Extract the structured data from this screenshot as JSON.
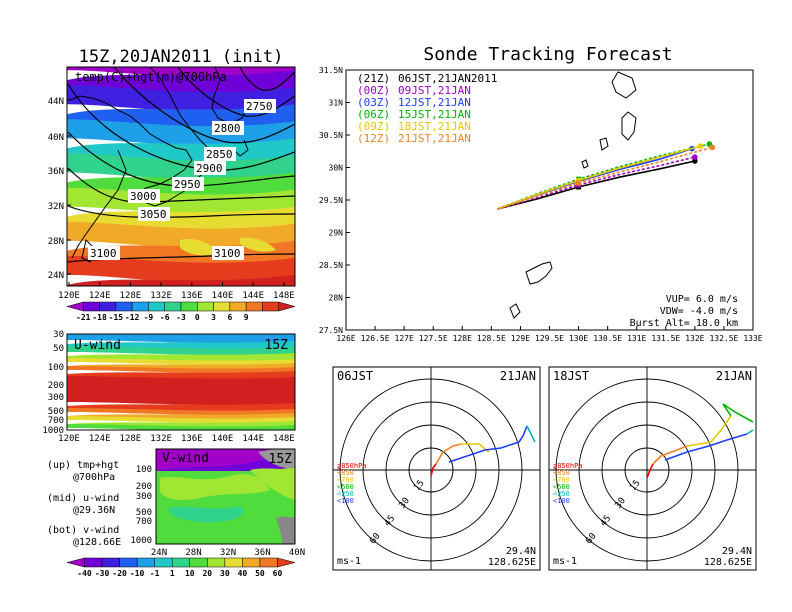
{
  "left": {
    "title": "15Z,20JAN2011 (init)",
    "map_label": "temp(C)+hgt(m)@700hPa",
    "lat_ticks": [
      "44N",
      "40N",
      "36N",
      "32N",
      "28N",
      "24N"
    ],
    "lon_ticks": [
      "120E",
      "124E",
      "128E",
      "132E",
      "136E",
      "140E",
      "144E",
      "148E"
    ],
    "height_labels": [
      "2750",
      "2800",
      "2850",
      "2900",
      "2950",
      "3000",
      "3050",
      "3100",
      "3100"
    ],
    "temp_colorbar": {
      "labels": [
        "-21",
        "-18",
        "-15",
        "-12",
        "-9",
        "-6",
        "-3",
        "0",
        "3",
        "6",
        "9"
      ],
      "colors": [
        "#a000c8",
        "#7000d8",
        "#4020e0",
        "#2060f0",
        "#1ea0e8",
        "#20c8c8",
        "#30d28c",
        "#50dc3c",
        "#a0e632",
        "#e6dc32",
        "#f0aa28",
        "#f07824",
        "#e63c1e",
        "#d22020"
      ]
    },
    "uwind": {
      "label": "U-wind",
      "time": "15Z",
      "p_ticks": [
        "30",
        "50",
        "100",
        "200",
        "300",
        "500",
        "700",
        "1000"
      ],
      "lon_ticks": [
        "120E",
        "124E",
        "128E",
        "132E",
        "136E",
        "140E",
        "144E",
        "148E"
      ]
    },
    "vwind": {
      "label": "V-wind",
      "time": "15Z",
      "p_ticks": [
        "100",
        "200",
        "300",
        "500",
        "700",
        "1000"
      ],
      "lat_ticks": [
        "24N",
        "28N",
        "32N",
        "36N",
        "40N"
      ]
    },
    "wind_colorbar": {
      "labels": [
        "-40",
        "-30",
        "-20",
        "-10",
        "-1",
        "1",
        "10",
        "20",
        "30",
        "40",
        "50",
        "60"
      ],
      "colors": [
        "#a000c8",
        "#7000d8",
        "#4020e0",
        "#2060f0",
        "#1ea0e8",
        "#20c8c8",
        "#30d28c",
        "#50dc3c",
        "#a0e632",
        "#e6dc32",
        "#f0aa28",
        "#f07824",
        "#e63c1e"
      ]
    },
    "legend_notes": [
      [
        "(up) tmp+hgt",
        "@700hPa"
      ],
      [
        "(mid) u-wind",
        "@29.36N"
      ],
      [
        "(bot) v-wind",
        "@128.66E"
      ]
    ]
  },
  "right": {
    "title": "Sonde Tracking Forecast",
    "legend": [
      {
        "utc": "(21Z)",
        "jst": "06JST,21JAN2011",
        "color": "#000000"
      },
      {
        "utc": "(00Z)",
        "jst": "09JST,21JAN",
        "color": "#a000c8"
      },
      {
        "utc": "(03Z)",
        "jst": "12JST,21JAN",
        "color": "#1e3cff"
      },
      {
        "utc": "(06Z)",
        "jst": "15JST,21JAN",
        "color": "#00b400"
      },
      {
        "utc": "(09Z)",
        "jst": "18JST,21JAN",
        "color": "#e6c800"
      },
      {
        "utc": "(12Z)",
        "jst": "21JST,21JAN",
        "color": "#f08228"
      }
    ],
    "params": [
      "VUP= 6.0 m/s",
      "VDW= -4.0 m/s",
      "Burst Alt= 18.0 km"
    ],
    "hodographs": [
      {
        "time": "06JST",
        "date": "21JAN",
        "lat": "29.4N",
        "lon": "128.625E",
        "units": "ms-1"
      },
      {
        "time": "18JST",
        "date": "21JAN",
        "lat": "29.4N",
        "lon": "128.625E",
        "units": "ms-1"
      }
    ],
    "hodo_rings": [
      "15",
      "30",
      "45",
      "60"
    ],
    "pressure_legend": [
      {
        "label": "≧850hPa",
        "color": "#e60000"
      },
      {
        "label": "<850",
        "color": "#f08228"
      },
      {
        "label": "<700",
        "color": "#e6c800"
      },
      {
        "label": "<500",
        "color": "#00b400"
      },
      {
        "label": "<250",
        "color": "#00b4b4"
      },
      {
        "label": "<100",
        "color": "#1e3cff"
      }
    ]
  },
  "chart_data": [
    {
      "type": "heatmap",
      "title": "15Z,20JAN2011 (init)",
      "subtitle": "temp(C)+hgt(m)@700hPa",
      "xlim": [
        120,
        149
      ],
      "ylim": [
        22,
        47
      ],
      "contour_labels_m": [
        2750,
        2800,
        2850,
        2900,
        2950,
        3000,
        3050,
        3100,
        3100
      ],
      "colorbar": [
        -21,
        -18,
        -15,
        -12,
        -9,
        -6,
        -3,
        0,
        3,
        6,
        9
      ]
    },
    {
      "type": "heatmap",
      "title": "U-wind",
      "annotation": "15Z",
      "x_ticks": [
        "120E",
        "124E",
        "128E",
        "132E",
        "136E",
        "140E",
        "144E",
        "148E"
      ],
      "y_ticks_hPa": [
        30,
        50,
        100,
        200,
        300,
        500,
        700,
        1000
      ]
    },
    {
      "type": "heatmap",
      "title": "V-wind",
      "annotation": "15Z",
      "x_ticks": [
        "24N",
        "28N",
        "32N",
        "36N",
        "40N"
      ],
      "y_ticks_hPa": [
        100,
        200,
        300,
        500,
        700,
        1000
      ],
      "colorbar": [
        -40,
        -30,
        -20,
        -10,
        -1,
        1,
        10,
        20,
        30,
        40,
        50,
        60
      ]
    },
    {
      "type": "line",
      "title": "Sonde Tracking Forecast",
      "xlim": [
        126,
        133
      ],
      "ylim": [
        27.5,
        31.5
      ],
      "x_ticks": [
        126,
        126.5,
        127,
        127.5,
        128,
        128.5,
        129,
        129.5,
        130,
        130.5,
        131,
        131.5,
        132,
        132.5,
        133
      ],
      "y_ticks": [
        27.5,
        28,
        28.5,
        29,
        29.5,
        30,
        30.5,
        31,
        31.5
      ],
      "series": [
        {
          "name": "(21Z) 06JST,21JAN2011",
          "color": "#000000",
          "x": [
            128.6,
            129.3,
            130.0,
            130.7,
            131.4,
            132.0
          ],
          "y": [
            29.36,
            29.52,
            29.7,
            29.85,
            29.98,
            30.1
          ]
        },
        {
          "name": "(00Z) 09JST,21JAN",
          "color": "#a000c8",
          "x": [
            128.6,
            129.3,
            130.0,
            130.7,
            131.4,
            132.0
          ],
          "y": [
            29.36,
            29.54,
            29.73,
            29.89,
            30.03,
            30.16
          ]
        },
        {
          "name": "(03Z) 12JST,21JAN",
          "color": "#1e3cff",
          "x": [
            128.6,
            129.3,
            130.0,
            130.7,
            131.4,
            131.95
          ],
          "y": [
            29.36,
            29.58,
            29.79,
            29.97,
            30.13,
            30.29
          ]
        },
        {
          "name": "(06Z) 15JST,21JAN",
          "color": "#00b400",
          "x": [
            128.6,
            129.3,
            130.0,
            130.7,
            131.4,
            132.25
          ],
          "y": [
            29.36,
            29.6,
            29.82,
            30.01,
            30.18,
            30.36
          ]
        },
        {
          "name": "(09Z) 18JST,21JAN",
          "color": "#e6c800",
          "x": [
            128.6,
            129.3,
            130.0,
            130.7,
            131.4,
            132.1
          ],
          "y": [
            29.36,
            29.59,
            29.8,
            29.99,
            30.16,
            30.33
          ]
        },
        {
          "name": "(12Z) 21JST,21JAN",
          "color": "#f08228",
          "x": [
            128.6,
            129.3,
            130.0,
            130.7,
            131.4,
            132.3
          ],
          "y": [
            29.36,
            29.56,
            29.76,
            29.93,
            30.09,
            30.31
          ]
        }
      ],
      "annotations": [
        "VUP= 6.0 m/s",
        "VDW= -4.0 m/s",
        "Burst Alt= 18.0 km"
      ]
    }
  ]
}
